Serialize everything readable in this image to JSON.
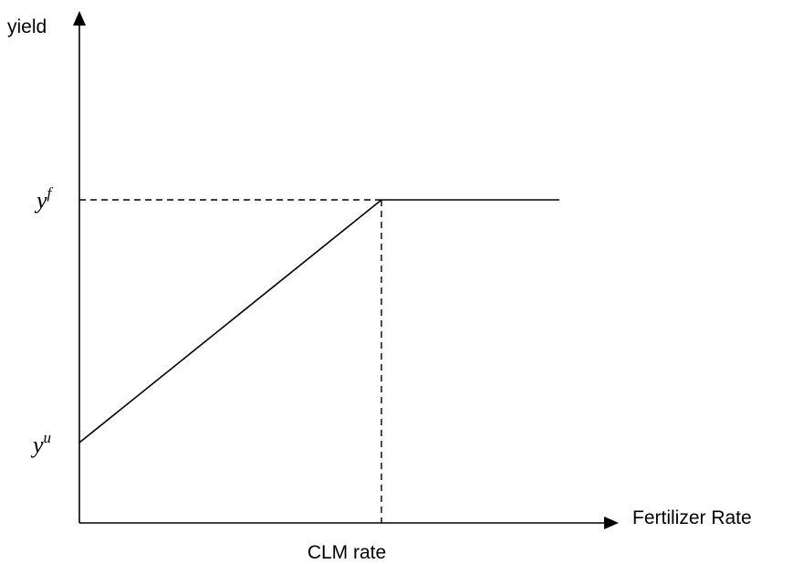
{
  "axes": {
    "y_label": "yield",
    "x_label": "Fertilizer Rate"
  },
  "markers": {
    "x_break": "CLM rate",
    "y_full": {
      "base": "y",
      "superscript": "f"
    },
    "y_unfertilized": {
      "base": "y",
      "superscript": "u"
    }
  }
}
